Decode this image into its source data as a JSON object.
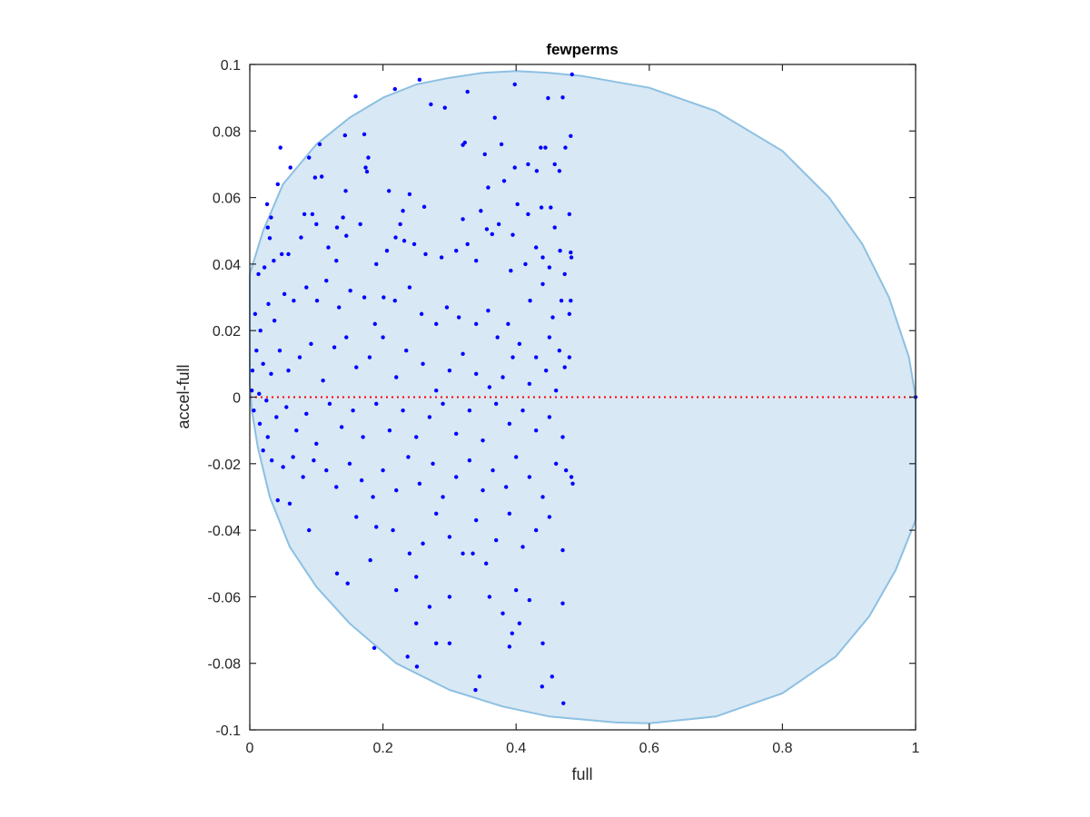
{
  "chart_data": {
    "type": "scatter",
    "title": "fewperms",
    "xlabel": "full",
    "ylabel": "accel-full",
    "xlim": [
      0,
      1
    ],
    "ylim": [
      -0.1,
      0.1
    ],
    "xticks": [
      "0",
      "0.2",
      "0.4",
      "0.6",
      "0.8",
      "1"
    ],
    "xtick_values": [
      0,
      0.2,
      0.4,
      0.6,
      0.8,
      1
    ],
    "yticks": [
      "-0.1",
      "-0.08",
      "-0.06",
      "-0.04",
      "-0.02",
      "0",
      "0.02",
      "0.04",
      "0.06",
      "0.08",
      "0.1"
    ],
    "ytick_values": [
      -0.1,
      -0.08,
      -0.06,
      -0.04,
      -0.02,
      0,
      0.02,
      0.04,
      0.06,
      0.08,
      0.1
    ],
    "grid": false,
    "colors": {
      "points": "#0000ff",
      "region_fill": "#d8e8f4",
      "region_stroke": "#8cc0e2",
      "zero_line": "#ff0000",
      "axis": "#262626"
    },
    "reference_line": {
      "y": 0,
      "style": "dotted"
    },
    "region_boundary": [
      [
        0,
        0.037
      ],
      [
        0.02,
        0.05
      ],
      [
        0.05,
        0.064
      ],
      [
        0.1,
        0.076
      ],
      [
        0.15,
        0.084
      ],
      [
        0.2,
        0.09
      ],
      [
        0.25,
        0.094
      ],
      [
        0.3,
        0.096
      ],
      [
        0.35,
        0.0975
      ],
      [
        0.4,
        0.098
      ],
      [
        0.45,
        0.0975
      ],
      [
        0.5,
        0.0965
      ],
      [
        0.6,
        0.093
      ],
      [
        0.7,
        0.086
      ],
      [
        0.8,
        0.074
      ],
      [
        0.87,
        0.06
      ],
      [
        0.92,
        0.046
      ],
      [
        0.96,
        0.03
      ],
      [
        0.99,
        0.012
      ],
      [
        1,
        0
      ],
      [
        1,
        -0.037
      ],
      [
        0.97,
        -0.052
      ],
      [
        0.93,
        -0.066
      ],
      [
        0.88,
        -0.078
      ],
      [
        0.8,
        -0.089
      ],
      [
        0.7,
        -0.096
      ],
      [
        0.6,
        -0.098
      ],
      [
        0.55,
        -0.0978
      ],
      [
        0.45,
        -0.096
      ],
      [
        0.38,
        -0.093
      ],
      [
        0.3,
        -0.088
      ],
      [
        0.22,
        -0.08
      ],
      [
        0.15,
        -0.068
      ],
      [
        0.1,
        -0.057
      ],
      [
        0.06,
        -0.045
      ],
      [
        0.03,
        -0.03
      ],
      [
        0.012,
        -0.015
      ],
      [
        0.003,
        -0.004
      ],
      [
        0,
        0.004
      ]
    ],
    "points": [
      [
        0.159,
        0.0904
      ],
      [
        0.218,
        0.0926
      ],
      [
        0.255,
        0.0954
      ],
      [
        0.327,
        0.0918
      ],
      [
        0.272,
        0.088
      ],
      [
        0.293,
        0.087
      ],
      [
        0.398,
        0.094
      ],
      [
        0.448,
        0.0899
      ],
      [
        0.47,
        0.0901
      ],
      [
        0.484,
        0.097
      ],
      [
        0.046,
        0.075
      ],
      [
        0.061,
        0.069
      ],
      [
        0.105,
        0.076
      ],
      [
        0.143,
        0.0787
      ],
      [
        0.172,
        0.079
      ],
      [
        0.174,
        0.069
      ],
      [
        0.368,
        0.084
      ],
      [
        0.323,
        0.0765
      ],
      [
        0.089,
        0.072
      ],
      [
        0.098,
        0.066
      ],
      [
        0.108,
        0.0663
      ],
      [
        0.144,
        0.062
      ],
      [
        0.178,
        0.072
      ],
      [
        0.176,
        0.0678
      ],
      [
        0.32,
        0.0758
      ],
      [
        0.353,
        0.073
      ],
      [
        0.378,
        0.076
      ],
      [
        0.437,
        0.075
      ],
      [
        0.458,
        0.07
      ],
      [
        0.474,
        0.075
      ],
      [
        0.482,
        0.0785
      ],
      [
        0.418,
        0.07
      ],
      [
        0.444,
        0.075
      ],
      [
        0.398,
        0.069
      ],
      [
        0.382,
        0.065
      ],
      [
        0.358,
        0.063
      ],
      [
        0.431,
        0.068
      ],
      [
        0.465,
        0.068
      ],
      [
        0.48,
        0.055
      ],
      [
        0.452,
        0.057
      ],
      [
        0.026,
        0.058
      ],
      [
        0.032,
        0.054
      ],
      [
        0.042,
        0.064
      ],
      [
        0.027,
        0.051
      ],
      [
        0.03,
        0.0478
      ],
      [
        0.082,
        0.055
      ],
      [
        0.094,
        0.055
      ],
      [
        0.14,
        0.054
      ],
      [
        0.131,
        0.051
      ],
      [
        0.166,
        0.052
      ],
      [
        0.226,
        0.052
      ],
      [
        0.232,
        0.047
      ],
      [
        0.209,
        0.062
      ],
      [
        0.24,
        0.061
      ],
      [
        0.23,
        0.056
      ],
      [
        0.262,
        0.0572
      ],
      [
        0.32,
        0.0535
      ],
      [
        0.347,
        0.056
      ],
      [
        0.356,
        0.0505
      ],
      [
        0.374,
        0.052
      ],
      [
        0.395,
        0.0488
      ],
      [
        0.402,
        0.058
      ],
      [
        0.418,
        0.055
      ],
      [
        0.438,
        0.057
      ],
      [
        0.458,
        0.051
      ],
      [
        0.466,
        0.044
      ],
      [
        0.482,
        0.0435
      ],
      [
        0.483,
        0.042
      ],
      [
        0.45,
        0.039
      ],
      [
        0.473,
        0.037
      ],
      [
        0.013,
        0.037
      ],
      [
        0.022,
        0.039
      ],
      [
        0.036,
        0.041
      ],
      [
        0.048,
        0.043
      ],
      [
        0.058,
        0.043
      ],
      [
        0.077,
        0.048
      ],
      [
        0.1,
        0.052
      ],
      [
        0.118,
        0.045
      ],
      [
        0.13,
        0.041
      ],
      [
        0.145,
        0.0485
      ],
      [
        0.19,
        0.04
      ],
      [
        0.206,
        0.044
      ],
      [
        0.219,
        0.048
      ],
      [
        0.247,
        0.046
      ],
      [
        0.264,
        0.043
      ],
      [
        0.288,
        0.042
      ],
      [
        0.31,
        0.044
      ],
      [
        0.327,
        0.046
      ],
      [
        0.34,
        0.041
      ],
      [
        0.364,
        0.049
      ],
      [
        0.392,
        0.038
      ],
      [
        0.414,
        0.04
      ],
      [
        0.43,
        0.045
      ],
      [
        0.44,
        0.042
      ],
      [
        0.468,
        0.029
      ],
      [
        0.482,
        0.029
      ],
      [
        0.48,
        0.025
      ],
      [
        0.455,
        0.024
      ],
      [
        0.44,
        0.034
      ],
      [
        0.421,
        0.029
      ],
      [
        0.008,
        0.025
      ],
      [
        0.016,
        0.02
      ],
      [
        0.028,
        0.028
      ],
      [
        0.037,
        0.023
      ],
      [
        0.052,
        0.031
      ],
      [
        0.066,
        0.029
      ],
      [
        0.085,
        0.033
      ],
      [
        0.101,
        0.029
      ],
      [
        0.115,
        0.035
      ],
      [
        0.134,
        0.027
      ],
      [
        0.151,
        0.032
      ],
      [
        0.172,
        0.03
      ],
      [
        0.188,
        0.022
      ],
      [
        0.201,
        0.03
      ],
      [
        0.218,
        0.029
      ],
      [
        0.24,
        0.033
      ],
      [
        0.258,
        0.025
      ],
      [
        0.28,
        0.022
      ],
      [
        0.296,
        0.027
      ],
      [
        0.314,
        0.024
      ],
      [
        0.34,
        0.022
      ],
      [
        0.358,
        0.026
      ],
      [
        0.372,
        0.018
      ],
      [
        0.388,
        0.022
      ],
      [
        0.405,
        0.016
      ],
      [
        0.43,
        0.012
      ],
      [
        0.45,
        0.018
      ],
      [
        0.465,
        0.014
      ],
      [
        0.48,
        0.012
      ],
      [
        0.473,
        0.009
      ],
      [
        0.004,
        0.008
      ],
      [
        0.01,
        0.014
      ],
      [
        0.02,
        0.01
      ],
      [
        0.032,
        0.007
      ],
      [
        0.045,
        0.014
      ],
      [
        0.058,
        0.008
      ],
      [
        0.075,
        0.012
      ],
      [
        0.092,
        0.016
      ],
      [
        0.11,
        0.005
      ],
      [
        0.127,
        0.015
      ],
      [
        0.145,
        0.018
      ],
      [
        0.16,
        0.009
      ],
      [
        0.18,
        0.012
      ],
      [
        0.2,
        0.018
      ],
      [
        0.22,
        0.006
      ],
      [
        0.235,
        0.014
      ],
      [
        0.26,
        0.01
      ],
      [
        0.28,
        0.002
      ],
      [
        0.3,
        0.008
      ],
      [
        0.32,
        0.013
      ],
      [
        0.34,
        0.007
      ],
      [
        0.36,
        0.003
      ],
      [
        0.38,
        0.006
      ],
      [
        0.395,
        0.012
      ],
      [
        0.42,
        0.004
      ],
      [
        0.445,
        0.008
      ],
      [
        0.46,
        0.002
      ],
      [
        0.003,
        0.002
      ],
      [
        0.014,
        0.001
      ],
      [
        0.025,
        -0.001
      ],
      [
        0.006,
        -0.004
      ],
      [
        0.015,
        -0.008
      ],
      [
        0.027,
        -0.012
      ],
      [
        0.04,
        -0.006
      ],
      [
        0.055,
        -0.003
      ],
      [
        0.07,
        -0.01
      ],
      [
        0.085,
        -0.005
      ],
      [
        0.1,
        -0.014
      ],
      [
        0.12,
        -0.002
      ],
      [
        0.138,
        -0.009
      ],
      [
        0.155,
        -0.004
      ],
      [
        0.17,
        -0.012
      ],
      [
        0.19,
        -0.002
      ],
      [
        0.21,
        -0.01
      ],
      [
        0.23,
        -0.004
      ],
      [
        0.25,
        -0.012
      ],
      [
        0.27,
        -0.006
      ],
      [
        0.29,
        -0.002
      ],
      [
        0.31,
        -0.011
      ],
      [
        0.33,
        -0.004
      ],
      [
        0.35,
        -0.013
      ],
      [
        0.37,
        -0.002
      ],
      [
        0.39,
        -0.008
      ],
      [
        0.41,
        -0.004
      ],
      [
        0.43,
        -0.01
      ],
      [
        0.45,
        -0.006
      ],
      [
        0.47,
        -0.012
      ],
      [
        0.02,
        -0.016
      ],
      [
        0.033,
        -0.019
      ],
      [
        0.05,
        -0.021
      ],
      [
        0.065,
        -0.018
      ],
      [
        0.08,
        -0.024
      ],
      [
        0.096,
        -0.019
      ],
      [
        0.115,
        -0.022
      ],
      [
        0.13,
        -0.027
      ],
      [
        0.15,
        -0.02
      ],
      [
        0.168,
        -0.025
      ],
      [
        0.185,
        -0.03
      ],
      [
        0.2,
        -0.022
      ],
      [
        0.22,
        -0.028
      ],
      [
        0.238,
        -0.018
      ],
      [
        0.255,
        -0.026
      ],
      [
        0.275,
        -0.02
      ],
      [
        0.29,
        -0.03
      ],
      [
        0.31,
        -0.024
      ],
      [
        0.33,
        -0.019
      ],
      [
        0.35,
        -0.028
      ],
      [
        0.365,
        -0.022
      ],
      [
        0.385,
        -0.027
      ],
      [
        0.4,
        -0.018
      ],
      [
        0.42,
        -0.024
      ],
      [
        0.44,
        -0.03
      ],
      [
        0.46,
        -0.02
      ],
      [
        0.475,
        -0.022
      ],
      [
        0.485,
        -0.026
      ],
      [
        0.483,
        -0.024
      ],
      [
        0.042,
        -0.031
      ],
      [
        0.06,
        -0.032
      ],
      [
        0.089,
        -0.04
      ],
      [
        0.131,
        -0.053
      ],
      [
        0.147,
        -0.056
      ],
      [
        0.181,
        -0.049
      ],
      [
        0.16,
        -0.036
      ],
      [
        0.19,
        -0.039
      ],
      [
        0.215,
        -0.04
      ],
      [
        0.24,
        -0.047
      ],
      [
        0.26,
        -0.044
      ],
      [
        0.28,
        -0.035
      ],
      [
        0.3,
        -0.042
      ],
      [
        0.32,
        -0.047
      ],
      [
        0.34,
        -0.037
      ],
      [
        0.355,
        -0.05
      ],
      [
        0.37,
        -0.043
      ],
      [
        0.39,
        -0.035
      ],
      [
        0.41,
        -0.045
      ],
      [
        0.43,
        -0.04
      ],
      [
        0.45,
        -0.036
      ],
      [
        0.47,
        -0.046
      ],
      [
        0.22,
        -0.058
      ],
      [
        0.25,
        -0.054
      ],
      [
        0.27,
        -0.063
      ],
      [
        0.3,
        -0.06
      ],
      [
        0.335,
        -0.047
      ],
      [
        0.36,
        -0.06
      ],
      [
        0.38,
        -0.065
      ],
      [
        0.4,
        -0.058
      ],
      [
        0.42,
        -0.061
      ],
      [
        0.47,
        -0.062
      ],
      [
        0.25,
        -0.068
      ],
      [
        0.28,
        -0.074
      ],
      [
        0.187,
        -0.0754
      ],
      [
        0.237,
        -0.078
      ],
      [
        0.251,
        -0.081
      ],
      [
        0.339,
        -0.088
      ],
      [
        0.345,
        -0.084
      ],
      [
        0.439,
        -0.087
      ],
      [
        0.454,
        -0.084
      ],
      [
        0.471,
        -0.092
      ],
      [
        0.394,
        -0.071
      ],
      [
        0.39,
        -0.075
      ],
      [
        0.3,
        -0.074
      ],
      [
        0.44,
        -0.074
      ],
      [
        0.405,
        -0.068
      ],
      [
        1.0,
        0.0
      ]
    ]
  }
}
